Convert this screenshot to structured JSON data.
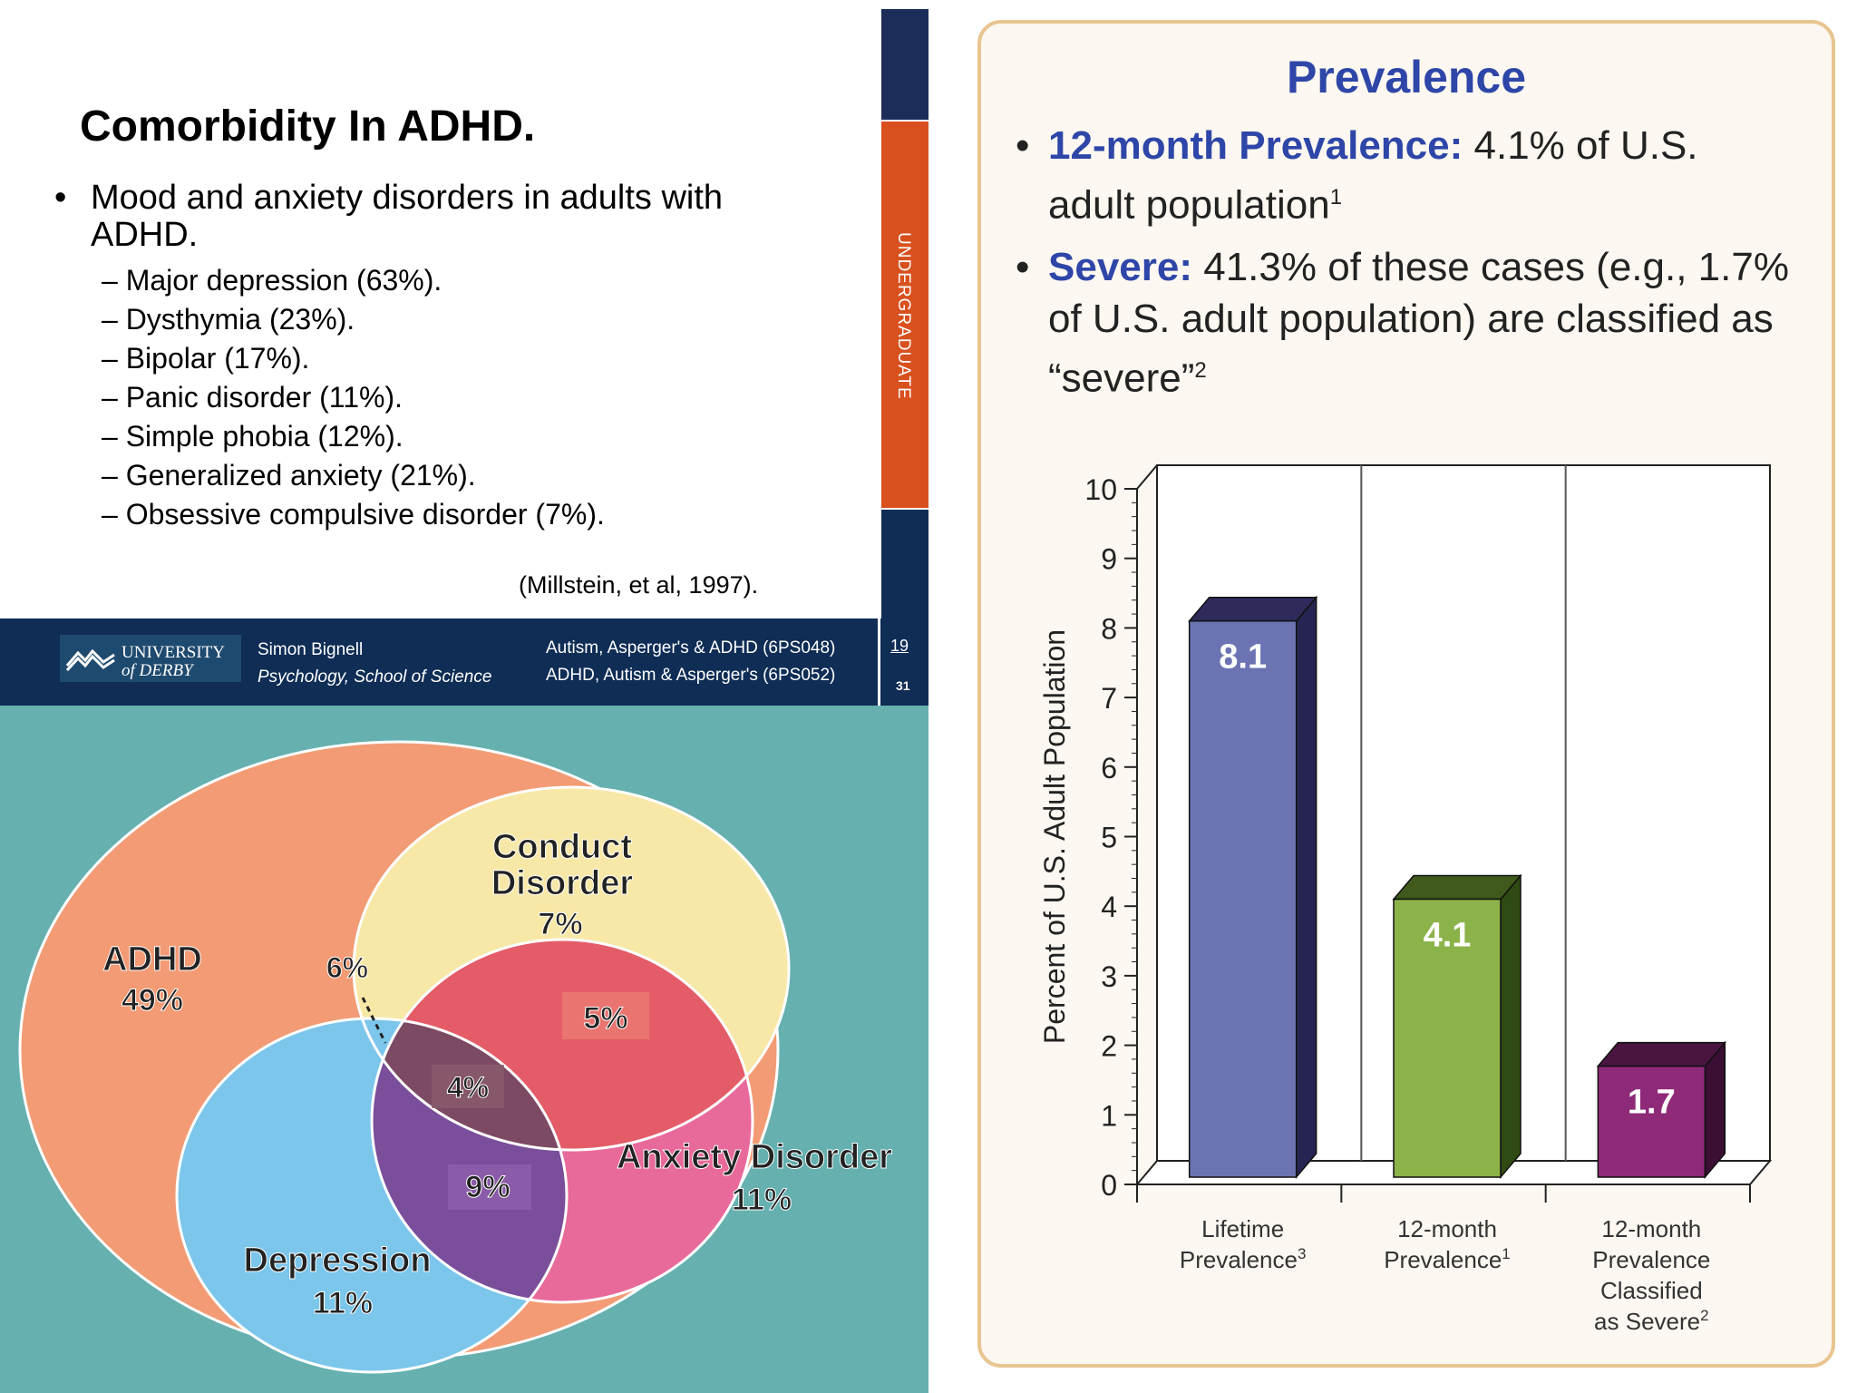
{
  "slide": {
    "title": "Comorbidity In ADHD.",
    "bullet": "Mood and anxiety disorders in adults with ADHD.",
    "bullet_marker": "•",
    "sub_items": [
      "Major depression (63%).",
      "Dysthymia (23%).",
      "Bipolar (17%).",
      "Panic disorder (11%).",
      "Simple phobia (12%).",
      "Generalized anxiety (21%).",
      "Obsessive compulsive disorder (7%)."
    ],
    "citation": "(Millstein, et al, 1997).",
    "sidebar_label": "UNDERGRADUATE",
    "footer": {
      "logo_line1": "UNIVERSITY",
      "logo_line2": "of DERBY",
      "author": "Simon Bignell",
      "department": "Psychology, School of Science",
      "course1": "Autism, Asperger's & ADHD (6PS048)",
      "course2": "ADHD, Autism & Asperger's (6PS052)",
      "page_current": "19",
      "page_total": "31"
    }
  },
  "venn": {
    "adhd_label": "ADHD",
    "adhd_pct": "49%",
    "conduct_label_1": "Conduct",
    "conduct_label_2": "Disorder",
    "conduct_pct": "7%",
    "overlap_adhd_conduct": "6%",
    "overlap_conduct_anxiety": "5%",
    "overlap_all": "4%",
    "overlap_depression_anxiety": "9%",
    "anxiety_label": "Anxiety Disorder",
    "anxiety_pct": "11%",
    "depression_label": "Depression",
    "depression_pct": "11%"
  },
  "panel": {
    "title": "Prevalence",
    "bullet_marker": "•",
    "b1_highlight": "12-month Prevalence:",
    "b1_text": " 4.1% of U.S. adult population",
    "b1_sup": "1",
    "b2_highlight": "Severe:",
    "b2_text": " 41.3% of these cases (e.g., 1.7% of U.S. adult population) are classified as “severe”",
    "b2_sup": "2"
  },
  "chart_data": {
    "type": "bar",
    "title": "",
    "ylabel": "Percent of U.S. Adult Population",
    "xlabel": "",
    "ylim": [
      0,
      10
    ],
    "yticks": [
      "0",
      "1",
      "2",
      "3",
      "4",
      "5",
      "6",
      "7",
      "8",
      "9",
      "10"
    ],
    "categories": [
      {
        "lines": [
          "Lifetime",
          "Prevalence"
        ],
        "sup": "3"
      },
      {
        "lines": [
          "12-month",
          "Prevalence"
        ],
        "sup": "1"
      },
      {
        "lines": [
          "12-month",
          "Prevalence",
          "Classified",
          "as Severe"
        ],
        "sup": "2"
      }
    ],
    "values": [
      8.1,
      4.1,
      1.7
    ],
    "value_labels": [
      "8.1",
      "4.1",
      "1.7"
    ],
    "colors": {
      "front": [
        "#6b73b2",
        "#8cb34a",
        "#8e2a78"
      ],
      "top": [
        "#2e2b5c",
        "#3f5a1c",
        "#4a1540"
      ],
      "side": [
        "#262452",
        "#2f4a12",
        "#3a0f33"
      ]
    }
  }
}
